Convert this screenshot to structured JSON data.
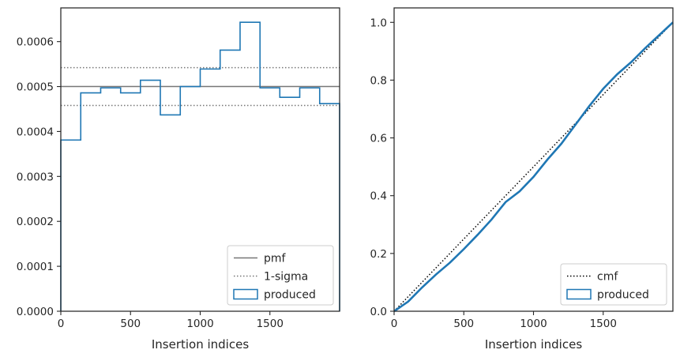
{
  "chart_data": [
    {
      "type": "histogram-step",
      "xlabel": "Insertion indices",
      "ylabel": "",
      "xlim": [
        0,
        2000
      ],
      "ylim": [
        0,
        0.000675
      ],
      "x_ticks": [
        0,
        500,
        1000,
        1500
      ],
      "y_ticks": [
        0,
        0.0001,
        0.0002,
        0.0003,
        0.0004,
        0.0005,
        0.0006
      ],
      "y_tick_labels": [
        "0.0000",
        "0.0001",
        "0.0002",
        "0.0003",
        "0.0004",
        "0.0005",
        "0.0006"
      ],
      "x_tick_labels": [
        "0",
        "500",
        "1000",
        "1500"
      ],
      "bin_edges": [
        0,
        143,
        286,
        429,
        571,
        714,
        857,
        1000,
        1143,
        1286,
        1429,
        1571,
        1714,
        1857,
        2000
      ],
      "bin_values": [
        0.000381,
        0.000486,
        0.000497,
        0.000486,
        0.000514,
        0.000437,
        0.0005,
        0.000539,
        0.000581,
        0.000643,
        0.000497,
        0.000476,
        0.000497,
        0.000462
      ],
      "pmf": 0.0005,
      "sigma_band": [
        0.000458,
        0.000542
      ],
      "legend_position": "lower-right",
      "legend": [
        {
          "label": "pmf",
          "style": "solid",
          "color": "#777777"
        },
        {
          "label": "1-sigma",
          "style": "dotted",
          "color": "#777777"
        },
        {
          "label": "produced",
          "style": "box",
          "color": "#1f77b4"
        }
      ],
      "grid": false
    },
    {
      "type": "line",
      "xlabel": "Insertion indices",
      "ylabel": "",
      "xlim": [
        0,
        2000
      ],
      "ylim": [
        0,
        1.05
      ],
      "x_ticks": [
        0,
        500,
        1000,
        1500
      ],
      "x_tick_labels": [
        "0",
        "500",
        "1000",
        "1500"
      ],
      "y_ticks": [
        0,
        0.2,
        0.4,
        0.6,
        0.8,
        1.0
      ],
      "y_tick_labels": [
        "0.0",
        "0.2",
        "0.4",
        "0.6",
        "0.8",
        "1.0"
      ],
      "series": [
        {
          "name": "cmf",
          "style": "dotted",
          "color": "#000000",
          "x": [
            0,
            2000
          ],
          "y": [
            0,
            1.0
          ]
        },
        {
          "name": "produced",
          "style": "solid",
          "color": "#1f77b4",
          "x": [
            0,
            100,
            200,
            300,
            400,
            500,
            600,
            700,
            800,
            900,
            1000,
            1100,
            1200,
            1300,
            1400,
            1500,
            1600,
            1700,
            1800,
            1900,
            2000
          ],
          "y": [
            0,
            0.033,
            0.082,
            0.127,
            0.168,
            0.215,
            0.265,
            0.318,
            0.378,
            0.415,
            0.465,
            0.525,
            0.58,
            0.645,
            0.71,
            0.77,
            0.82,
            0.862,
            0.91,
            0.955,
            1.0
          ]
        }
      ],
      "legend_position": "lower-right",
      "legend": [
        {
          "label": "cmf",
          "style": "dotted",
          "color": "#000000"
        },
        {
          "label": "produced",
          "style": "box",
          "color": "#1f77b4"
        }
      ],
      "grid": false
    }
  ]
}
